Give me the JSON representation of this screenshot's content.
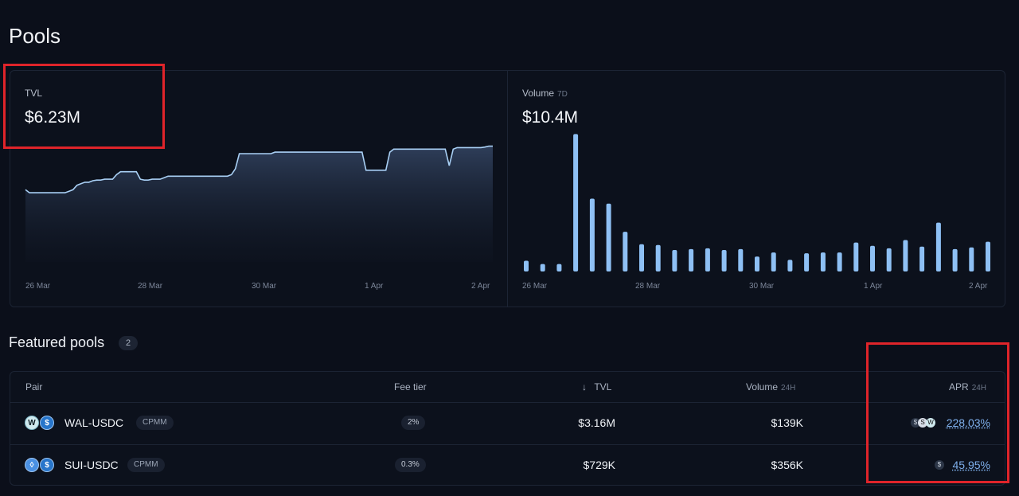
{
  "page": {
    "title": "Pools"
  },
  "tvl": {
    "label": "TVL",
    "value": "$6.23M",
    "axis": [
      "26 Mar",
      "28 Mar",
      "30 Mar",
      "1 Apr",
      "2 Apr"
    ]
  },
  "volume": {
    "label": "Volume",
    "period": "7D",
    "value": "$10.4M",
    "axis": [
      "26 Mar",
      "28 Mar",
      "30 Mar",
      "1 Apr",
      "2 Apr"
    ]
  },
  "chart_data": [
    {
      "type": "area",
      "title": "TVL",
      "x_labels": [
        "26 Mar",
        "28 Mar",
        "30 Mar",
        "1 Apr",
        "2 Apr"
      ],
      "values": [
        2.4,
        2.3,
        2.3,
        2.3,
        2.3,
        2.3,
        2.3,
        2.3,
        2.3,
        2.3,
        2.3,
        2.35,
        2.4,
        2.55,
        2.6,
        2.65,
        2.65,
        2.7,
        2.72,
        2.72,
        2.75,
        2.75,
        2.75,
        2.9,
        3.0,
        3.0,
        3.0,
        3.0,
        3.0,
        2.75,
        2.72,
        2.72,
        2.75,
        2.75,
        2.75,
        2.8,
        2.85,
        2.85,
        2.85,
        2.85,
        2.85,
        2.85,
        2.85,
        2.85,
        2.85,
        2.85,
        2.85,
        2.85,
        2.85,
        2.85,
        2.85,
        2.85,
        2.9,
        3.1,
        3.6,
        3.6,
        3.6,
        3.6,
        3.6,
        3.6,
        3.6,
        3.6,
        3.6,
        3.65,
        3.65,
        3.65,
        3.65,
        3.65,
        3.65,
        3.65,
        3.65,
        3.65,
        3.65,
        3.65,
        3.65,
        3.65,
        3.65,
        3.65,
        3.65,
        3.65,
        3.65,
        3.65,
        3.65,
        3.65,
        3.65,
        3.65,
        3.05,
        3.05,
        3.05,
        3.05,
        3.05,
        3.05,
        3.65,
        3.75,
        3.75,
        3.75,
        3.75,
        3.75,
        3.75,
        3.75,
        3.75,
        3.75,
        3.75,
        3.75,
        3.75,
        3.75,
        3.75,
        3.2,
        3.75,
        3.8,
        3.8,
        3.8,
        3.8,
        3.8,
        3.8,
        3.8,
        3.82,
        3.85,
        3.85
      ],
      "ylim": [
        0,
        4.5
      ]
    },
    {
      "type": "bar",
      "title": "Volume 7D",
      "x_labels": [
        "26 Mar",
        "28 Mar",
        "30 Mar",
        "1 Apr",
        "2 Apr"
      ],
      "values": [
        0.13,
        0.09,
        0.09,
        1.66,
        0.88,
        0.82,
        0.48,
        0.33,
        0.32,
        0.26,
        0.27,
        0.28,
        0.26,
        0.27,
        0.18,
        0.23,
        0.14,
        0.22,
        0.23,
        0.23,
        0.35,
        0.31,
        0.28,
        0.38,
        0.3,
        0.59,
        0.27,
        0.29,
        0.36
      ],
      "ylim": [
        0,
        1.75
      ]
    }
  ],
  "featured": {
    "title": "Featured pools",
    "count": "2"
  },
  "table": {
    "headers": {
      "pair": "Pair",
      "fee": "Fee tier",
      "tvl": "TVL",
      "tvl_sort": "↓",
      "volume": "Volume",
      "volume_sub": "24H",
      "apr": "APR",
      "apr_sub": "24H"
    },
    "rows": [
      {
        "pair": "WAL-USDC",
        "type": "CPMM",
        "fee": "2%",
        "tvl": "$3.16M",
        "volume": "$139K",
        "apr": "228.03%",
        "token_a": "W",
        "token_b": "$",
        "rewards": [
          "$",
          "S",
          "W"
        ]
      },
      {
        "pair": "SUI-USDC",
        "type": "CPMM",
        "fee": "0.3%",
        "tvl": "$729K",
        "volume": "$356K",
        "apr": "45.95%",
        "token_a": "◊",
        "token_b": "$",
        "rewards": [
          "$"
        ]
      }
    ]
  },
  "colors": {
    "accent": "#7fb0ec",
    "highlight": "#e0242a",
    "background": "#0b0f1a"
  }
}
